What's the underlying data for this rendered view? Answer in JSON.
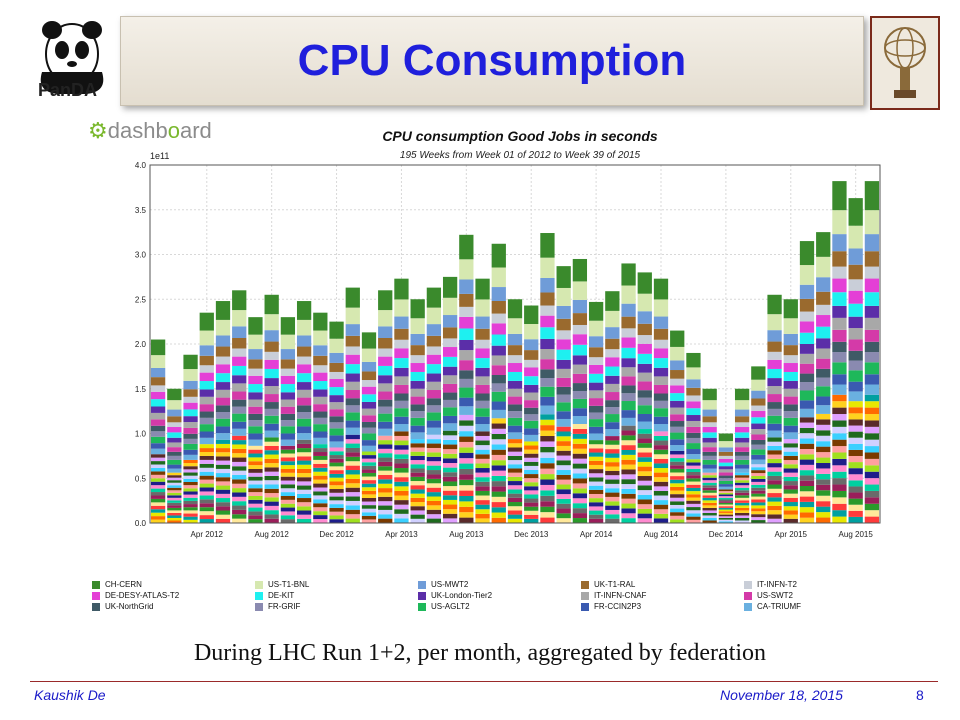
{
  "slide": {
    "title": "CPU Consumption",
    "caption": "During LHC Run 1+2, per month, aggregated by federation",
    "footer_left": "Kaushik De",
    "footer_date": "November 18, 2015",
    "page_number": "8",
    "logo_left_text": "PanDA",
    "dashboard_logo_a": "dash",
    "dashboard_logo_b": "b",
    "dashboard_logo_c": "ard"
  },
  "colors": {
    "title": "#1f1fdc",
    "footer": "#1a1ac8"
  },
  "chart_data": {
    "type": "bar",
    "stacked": true,
    "title": "CPU consumption Good Jobs in seconds",
    "subtitle": "195 Weeks from Week 01 of 2012 to Week 39 of 2015",
    "y_multiplier_label": "1e11",
    "ylim": [
      0,
      4.0
    ],
    "yticks": [
      "0.0",
      "0.5",
      "1.0",
      "1.5",
      "2.0",
      "2.5",
      "3.0",
      "3.5",
      "4.0"
    ],
    "xtick_labels": [
      "Apr 2012",
      "Aug 2012",
      "Dec 2012",
      "Apr 2013",
      "Aug 2013",
      "Dec 2013",
      "Apr 2014",
      "Aug 2014",
      "Dec 2014",
      "Apr 2015",
      "Aug 2015"
    ],
    "xtick_month_index": [
      3,
      7,
      11,
      15,
      19,
      23,
      27,
      31,
      35,
      39,
      43
    ],
    "grid": true,
    "legend_position": "bottom",
    "months": 45,
    "totals": [
      2.05,
      1.5,
      1.88,
      2.35,
      2.48,
      2.6,
      2.3,
      2.55,
      2.3,
      2.48,
      2.35,
      2.25,
      2.63,
      2.13,
      2.6,
      2.73,
      2.5,
      2.63,
      2.75,
      3.22,
      2.73,
      3.12,
      2.5,
      2.43,
      3.24,
      2.87,
      2.95,
      2.47,
      2.59,
      2.9,
      2.8,
      2.73,
      2.15,
      1.9,
      1.5,
      1.0,
      1.5,
      1.75,
      2.55,
      2.5,
      3.15,
      3.25,
      3.82,
      3.63,
      3.82
    ],
    "series": [
      {
        "name": "CH-CERN",
        "color": "#3a8a2c"
      },
      {
        "name": "US-T1-BNL",
        "color": "#d6e8b0"
      },
      {
        "name": "US-MWT2",
        "color": "#6f9cd8"
      },
      {
        "name": "UK-T1-RAL",
        "color": "#9a6a2e"
      },
      {
        "name": "IT-INFN-T2",
        "color": "#c9ced8"
      },
      {
        "name": "DE-DESY-ATLAS-T2",
        "color": "#e43fd6"
      },
      {
        "name": "DE-KIT",
        "color": "#1ef0f0"
      },
      {
        "name": "UK-London-Tier2",
        "color": "#5b2ea8"
      },
      {
        "name": "IT-INFN-CNAF",
        "color": "#a8a8a8"
      },
      {
        "name": "US-SWT2",
        "color": "#d43aa8"
      },
      {
        "name": "UK-NorthGrid",
        "color": "#3f5a66"
      },
      {
        "name": "FR-GRIF",
        "color": "#8a8ab0"
      },
      {
        "name": "US-AGLT2",
        "color": "#1eb85a"
      },
      {
        "name": "FR-CCIN2P3",
        "color": "#3a5ab0"
      },
      {
        "name": "CA-TRIUMF",
        "color": "#6ab0e0"
      }
    ],
    "legend_rows": [
      [
        "CH-CERN",
        "US-T1-BNL",
        "US-MWT2",
        "UK-T1-RAL",
        "IT-INFN-T2"
      ],
      [
        "DE-DESY-ATLAS-T2",
        "DE-KIT",
        "UK-London-Tier2",
        "IT-INFN-CNAF",
        "US-SWT2"
      ],
      [
        "UK-NorthGrid",
        "FR-GRIF",
        "US-AGLT2",
        "FR-CCIN2P3",
        "CA-TRIUMF"
      ]
    ]
  }
}
